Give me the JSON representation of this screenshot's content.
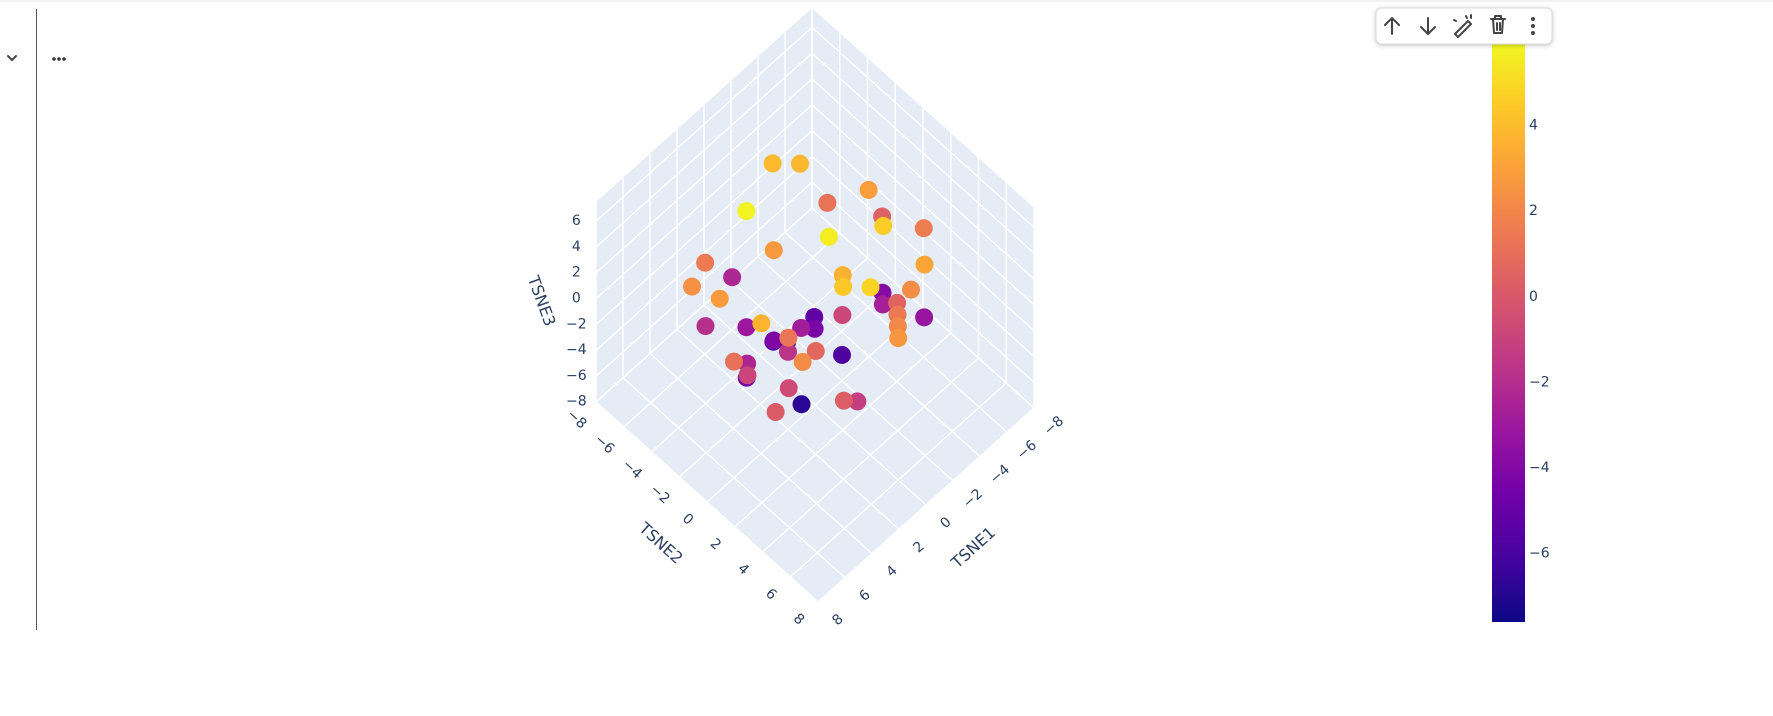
{
  "chart_data": {
    "type": "scatter3d",
    "xaxis_title": "TSNE1",
    "yaxis_title": "TSNE2",
    "zaxis_title": "TSNE3",
    "xlim": [
      -8,
      8
    ],
    "ylim": [
      -8,
      8
    ],
    "zlim": [
      -8,
      7.5
    ],
    "xticks": [
      {
        "value": -8,
        "label": "−8"
      },
      {
        "value": -6,
        "label": "−6"
      },
      {
        "value": -4,
        "label": "−4"
      },
      {
        "value": -2,
        "label": "−2"
      },
      0,
      2,
      4,
      6,
      8
    ],
    "yticks": [
      {
        "value": -8,
        "label": "−8"
      },
      {
        "value": -6,
        "label": "−6"
      },
      {
        "value": -4,
        "label": "−4"
      },
      {
        "value": -2,
        "label": "−2"
      },
      0,
      2,
      4,
      6,
      8
    ],
    "zticks": [
      {
        "value": -8,
        "label": "−8"
      },
      {
        "value": -6,
        "label": "−6"
      },
      {
        "value": -4,
        "label": "−4"
      },
      {
        "value": -2,
        "label": "−2"
      },
      0,
      2,
      4,
      6
    ],
    "grid": true,
    "background": "#e5ecf6",
    "colorscale": [
      "#0d0887",
      "#46039f",
      "#7201a8",
      "#9c179e",
      "#bd3786",
      "#d8576b",
      "#ed7953",
      "#fb9f3a",
      "#fdca26",
      "#f0f921"
    ],
    "colorbar": {
      "range": [
        -7.6,
        6
      ],
      "ticks": [
        {
          "value": -6,
          "label": "−6"
        },
        {
          "value": -4,
          "label": "−4"
        },
        {
          "value": -2,
          "label": "−2"
        },
        0,
        2,
        4
      ]
    },
    "series": [
      {
        "x": [
          -3,
          2,
          5,
          -5,
          0,
          4,
          -2,
          6,
          -6,
          1,
          3,
          -4,
          -1,
          5,
          2,
          -3,
          0,
          4,
          -5,
          1,
          -2,
          3,
          6,
          -4,
          0,
          2,
          -1,
          5,
          -3,
          1,
          4,
          -6,
          0,
          3,
          -2,
          2,
          -4,
          1,
          5,
          -1,
          -3,
          0,
          4,
          2,
          -5,
          3,
          -2,
          1,
          0,
          -1
        ],
        "y": [
          2,
          -3,
          1,
          -1,
          4,
          3,
          -5,
          0,
          2,
          -2,
          5,
          -3,
          1,
          -4,
          0,
          3,
          -1,
          2,
          0,
          -5,
          4,
          -2,
          3,
          1,
          -3,
          5,
          -1,
          -2,
          4,
          0,
          -4,
          -1,
          2,
          1,
          -2,
          -3,
          4,
          3,
          0,
          5,
          -4,
          1,
          -1,
          2,
          3,
          -5,
          0,
          -2,
          6,
          -3
        ],
        "z": [
          5,
          6,
          4,
          3,
          5,
          2,
          4,
          1,
          2,
          3,
          0,
          1,
          -1,
          2,
          -2,
          0,
          -3,
          -1,
          -4,
          -2,
          1,
          -5,
          0,
          -3,
          -6,
          -1,
          -4,
          3,
          2,
          -7,
          -2,
          0,
          4,
          1,
          -5,
          -3,
          3,
          5,
          -1,
          2,
          4,
          6,
          -2,
          0,
          -3,
          1,
          -6,
          -4,
          3,
          -7
        ],
        "color": [
          4.6,
          5.8,
          3.7,
          2.9,
          4.8,
          2.2,
          3.9,
          1.1,
          1.6,
          2.7,
          0.3,
          1.2,
          -0.8,
          2.4,
          -1.7,
          0.5,
          -2.8,
          -0.6,
          -3.9,
          -2.3,
          1.4,
          -4.6,
          0.2,
          -2.7,
          -6.1,
          -1.2,
          -4.3,
          2.8,
          2.3,
          -6.8,
          -1.9,
          0.4,
          3.6,
          1.3,
          -5.2,
          -3.1,
          3.2,
          4.4,
          -0.9,
          2.1,
          3.8,
          5.6,
          -2.4,
          0.7,
          -3.3,
          1.5,
          -5.8,
          -4.1,
          2.6,
          -7.2
        ]
      }
    ]
  }
}
